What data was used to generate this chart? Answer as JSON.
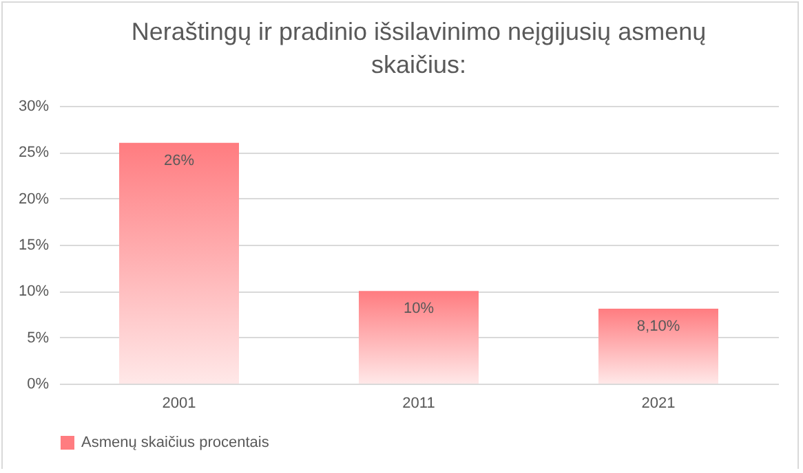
{
  "chart_data": {
    "type": "bar",
    "title": "Neraštingų ir pradinio išsilavinimo neįgijusių asmenų skaičius:",
    "categories": [
      "2001",
      "2011",
      "2021"
    ],
    "series": [
      {
        "name": "Asmenų skaičius procentais",
        "color": "#ff7c80",
        "values": [
          26,
          10,
          8.1
        ],
        "value_labels": [
          "26%",
          "10%",
          "8,10%"
        ]
      }
    ],
    "ylim": [
      0,
      30
    ],
    "yticks": [
      {
        "value": 0,
        "label": "0%"
      },
      {
        "value": 5,
        "label": "5%"
      },
      {
        "value": 10,
        "label": "10%"
      },
      {
        "value": 15,
        "label": "15%"
      },
      {
        "value": 20,
        "label": "20%"
      },
      {
        "value": 25,
        "label": "25%"
      },
      {
        "value": 30,
        "label": "30%"
      }
    ],
    "grid": "y",
    "legend": "bottom"
  }
}
